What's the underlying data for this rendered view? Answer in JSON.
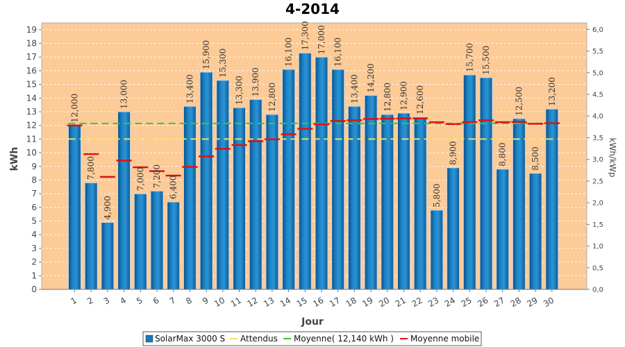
{
  "chart_data": {
    "type": "bar",
    "title": "4-2014",
    "xlabel": "Jour",
    "ylabel": "kWh",
    "ylabel_right": "kWh/kWp",
    "ylim": [
      0,
      19.5
    ],
    "ylim_right": [
      0,
      6.15
    ],
    "yticks": [
      "0",
      "1",
      "2",
      "3",
      "4",
      "5",
      "6",
      "7",
      "8",
      "9",
      "10",
      "11",
      "12",
      "13",
      "14",
      "15",
      "16",
      "17",
      "18",
      "19"
    ],
    "yticks_right": [
      "0,0",
      "0,5",
      "1,0",
      "1,5",
      "2,0",
      "2,5",
      "3,0",
      "3,5",
      "4,0",
      "4,5",
      "5,0",
      "5,5",
      "6,0"
    ],
    "categories": [
      "1",
      "2",
      "3",
      "4",
      "5",
      "6",
      "7",
      "8",
      "9",
      "10",
      "11",
      "12",
      "13",
      "14",
      "15",
      "16",
      "17",
      "18",
      "19",
      "20",
      "21",
      "22",
      "23",
      "24",
      "25",
      "26",
      "27",
      "28",
      "29",
      "30"
    ],
    "series": [
      {
        "name": "SolarMax 3000 S",
        "kind": "bar",
        "color": "#1a78b8",
        "values": [
          12.0,
          7.8,
          4.9,
          13.0,
          7.0,
          7.2,
          6.4,
          13.4,
          15.9,
          15.3,
          13.3,
          13.9,
          12.8,
          16.1,
          17.3,
          17.0,
          16.1,
          13.4,
          14.2,
          12.8,
          12.9,
          12.6,
          5.8,
          8.9,
          15.7,
          15.5,
          8.8,
          12.5,
          8.5,
          13.2
        ],
        "labels": [
          "12,000",
          "7,800",
          "4,900",
          "13,000",
          "7,000",
          "7,200",
          "6,400",
          "13,400",
          "15,900",
          "15,300",
          "13,300",
          "13,900",
          "12,800",
          "16,100",
          "17,300",
          "17,000",
          "16,100",
          "13,400",
          "14,200",
          "12,800",
          "12,900",
          "12,600",
          "5,800",
          "8,900",
          "15,700",
          "15,500",
          "8,800",
          "12,500",
          "8,500",
          "13,200"
        ]
      },
      {
        "name": "Attendus",
        "kind": "line",
        "color": "#f0e060",
        "value": 11.0
      },
      {
        "name": "Moyenne( 12,140 kWh )",
        "kind": "line",
        "color": "#33cc33",
        "value": 12.14
      },
      {
        "name": "Moyenne mobile",
        "kind": "segments",
        "color": "#dd1111",
        "values": [
          12.0,
          9.9,
          8.23,
          9.43,
          8.94,
          8.65,
          8.33,
          8.96,
          9.73,
          10.29,
          10.56,
          10.84,
          10.99,
          11.35,
          11.75,
          12.08,
          12.32,
          12.38,
          12.47,
          12.49,
          12.51,
          12.52,
          12.23,
          12.09,
          12.24,
          12.37,
          12.24,
          12.25,
          12.12,
          12.16
        ]
      }
    ],
    "colors": {
      "plot_background": "#fccb98",
      "grid": "#ffffff",
      "bar": "#1a78b8",
      "attendus": "#f0e060",
      "moyenne": "#33cc33",
      "moyenne_mobile": "#dd1111"
    },
    "legend_position": "bottom-center",
    "grid": true
  }
}
